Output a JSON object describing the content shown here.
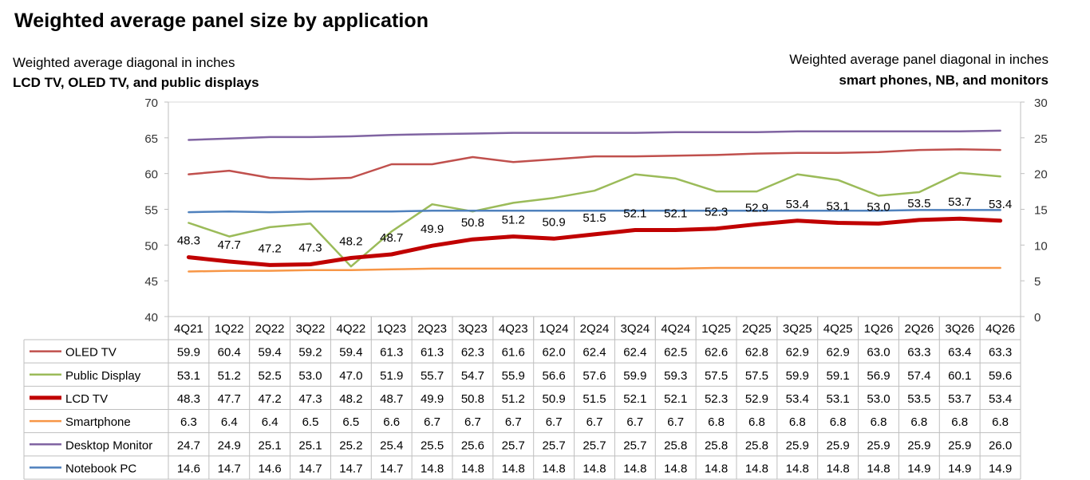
{
  "title": "Weighted average panel size by application",
  "left_axis": {
    "line1": "Weighted average diagonal in inches",
    "line2": "LCD TV, OLED TV, and public displays"
  },
  "right_axis": {
    "line1": "Weighted average panel diagonal in inches",
    "line2": "smart phones, NB, and monitors"
  },
  "chart_data": {
    "type": "line",
    "title": "Weighted average panel size by application",
    "categories": [
      "4Q21",
      "1Q22",
      "2Q22",
      "3Q22",
      "4Q22",
      "1Q23",
      "2Q23",
      "3Q23",
      "4Q23",
      "1Q24",
      "2Q24",
      "3Q24",
      "4Q24",
      "1Q25",
      "2Q25",
      "3Q25",
      "4Q25",
      "1Q26",
      "2Q26",
      "3Q26",
      "4Q26"
    ],
    "y_left": {
      "label": "Weighted average diagonal in inches",
      "range": [
        40,
        70
      ],
      "ticks": [
        40,
        45,
        50,
        55,
        60,
        65,
        70
      ]
    },
    "y_right": {
      "label": "Weighted average panel diagonal in inches",
      "range": [
        0,
        30
      ],
      "ticks": [
        0,
        5,
        10,
        15,
        20,
        25,
        30
      ]
    },
    "grid": false,
    "legend": "data table below chart",
    "data_labels_series": "LCD TV",
    "series": [
      {
        "name": "OLED TV",
        "axis": "left",
        "color": "#c0504d",
        "width": 2.5,
        "values": [
          59.9,
          60.4,
          59.4,
          59.2,
          59.4,
          61.3,
          61.3,
          62.3,
          61.6,
          62.0,
          62.4,
          62.4,
          62.5,
          62.6,
          62.8,
          62.9,
          62.9,
          63.0,
          63.3,
          63.4,
          63.3
        ]
      },
      {
        "name": "Public Display",
        "axis": "left",
        "color": "#9bbb59",
        "width": 2.5,
        "values": [
          53.1,
          51.2,
          52.5,
          53.0,
          47.0,
          51.9,
          55.7,
          54.7,
          55.9,
          56.6,
          57.6,
          59.9,
          59.3,
          57.5,
          57.5,
          59.9,
          59.1,
          56.9,
          57.4,
          60.1,
          59.6
        ]
      },
      {
        "name": "LCD TV",
        "axis": "left",
        "color": "#c00000",
        "width": 5,
        "values": [
          48.3,
          47.7,
          47.2,
          47.3,
          48.2,
          48.7,
          49.9,
          50.8,
          51.2,
          50.9,
          51.5,
          52.1,
          52.1,
          52.3,
          52.9,
          53.4,
          53.1,
          53.0,
          53.5,
          53.7,
          53.4
        ]
      },
      {
        "name": "Smartphone",
        "axis": "right",
        "color": "#f79646",
        "width": 2.5,
        "values": [
          6.3,
          6.4,
          6.4,
          6.5,
          6.5,
          6.6,
          6.7,
          6.7,
          6.7,
          6.7,
          6.7,
          6.7,
          6.7,
          6.8,
          6.8,
          6.8,
          6.8,
          6.8,
          6.8,
          6.8,
          6.8
        ]
      },
      {
        "name": "Desktop Monitor",
        "axis": "right",
        "color": "#8064a2",
        "width": 2.5,
        "values": [
          24.7,
          24.9,
          25.1,
          25.1,
          25.2,
          25.4,
          25.5,
          25.6,
          25.7,
          25.7,
          25.7,
          25.7,
          25.8,
          25.8,
          25.8,
          25.9,
          25.9,
          25.9,
          25.9,
          25.9,
          26.0
        ]
      },
      {
        "name": "Notebook PC",
        "axis": "right",
        "color": "#4f81bd",
        "width": 2.5,
        "values": [
          14.6,
          14.7,
          14.6,
          14.7,
          14.7,
          14.7,
          14.8,
          14.8,
          14.8,
          14.8,
          14.8,
          14.8,
          14.8,
          14.8,
          14.8,
          14.8,
          14.8,
          14.8,
          14.9,
          14.9,
          14.9
        ]
      }
    ]
  }
}
